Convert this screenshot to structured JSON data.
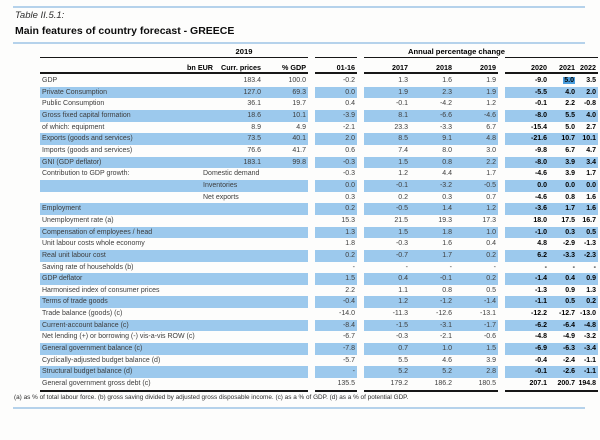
{
  "table_label": "Table II.5.1:",
  "title": "Main features of country forecast - GREECE",
  "header": {
    "group_2019": "2019",
    "group_apc": "Annual percentage change",
    "columns": [
      "bn EUR",
      "Curr. prices",
      "% GDP",
      "01-16",
      "2017",
      "2018",
      "2019",
      "2020",
      "2021",
      "2022"
    ]
  },
  "rows": [
    {
      "label": "GDP",
      "s": false,
      "hl": 7,
      "v": [
        "183.4",
        "100.0",
        "-0.2",
        "1.3",
        "1.6",
        "1.9",
        "-9.0",
        "5.0",
        "3.5"
      ]
    },
    {
      "label": "Private Consumption",
      "s": true,
      "v": [
        "127.0",
        "69.3",
        "0.0",
        "1.9",
        "2.3",
        "1.9",
        "-5.5",
        "4.0",
        "2.0"
      ]
    },
    {
      "label": "Public Consumption",
      "s": false,
      "v": [
        "36.1",
        "19.7",
        "0.4",
        "-0.1",
        "-4.2",
        "1.2",
        "-0.1",
        "2.2",
        "-0.8"
      ]
    },
    {
      "label": "Gross fixed capital formation",
      "s": true,
      "v": [
        "18.6",
        "10.1",
        "-3.9",
        "8.1",
        "-6.6",
        "-4.6",
        "-8.0",
        "5.5",
        "4.0"
      ]
    },
    {
      "label": "of which: equipment",
      "s": false,
      "v": [
        "8.9",
        "4.9",
        "-2.1",
        "23.3",
        "-3.3",
        "6.7",
        "-15.4",
        "5.0",
        "2.7"
      ]
    },
    {
      "label": "Exports (goods and services)",
      "s": true,
      "v": [
        "73.5",
        "40.1",
        "2.0",
        "8.5",
        "9.1",
        "4.8",
        "-21.6",
        "10.7",
        "10.1"
      ]
    },
    {
      "label": "Imports (goods and services)",
      "s": false,
      "v": [
        "76.6",
        "41.7",
        "0.6",
        "7.4",
        "8.0",
        "3.0",
        "-9.8",
        "6.7",
        "4.7"
      ]
    },
    {
      "label": "GNI (GDP deflator)",
      "s": true,
      "v": [
        "183.1",
        "99.8",
        "-0.3",
        "1.5",
        "0.8",
        "2.2",
        "-8.0",
        "3.9",
        "3.4"
      ]
    },
    {
      "label": "Contribution to GDP growth:",
      "sub": "Domestic demand",
      "s": false,
      "v": [
        "",
        "",
        "-0.3",
        "1.2",
        "4.4",
        "1.7",
        "-4.6",
        "3.9",
        "1.7"
      ]
    },
    {
      "label": "",
      "sub": "Inventories",
      "s": true,
      "v": [
        "",
        "",
        "0.0",
        "-0.1",
        "-3.2",
        "-0.5",
        "0.0",
        "0.0",
        "0.0"
      ]
    },
    {
      "label": "",
      "sub": "Net exports",
      "s": false,
      "v": [
        "",
        "",
        "0.3",
        "0.2",
        "0.3",
        "0.7",
        "-4.6",
        "0.8",
        "1.6"
      ]
    },
    {
      "label": "Employment",
      "s": true,
      "v": [
        "",
        "",
        "0.2",
        "-0.5",
        "1.4",
        "1.2",
        "-3.6",
        "1.7",
        "1.6"
      ]
    },
    {
      "label": "Unemployment rate (a)",
      "s": false,
      "v": [
        "",
        "",
        "15.3",
        "21.5",
        "19.3",
        "17.3",
        "18.0",
        "17.5",
        "16.7"
      ]
    },
    {
      "label": "Compensation of employees / head",
      "s": true,
      "v": [
        "",
        "",
        "1.3",
        "1.5",
        "1.8",
        "1.0",
        "-1.0",
        "0.3",
        "0.5"
      ]
    },
    {
      "label": "Unit labour costs whole economy",
      "s": false,
      "v": [
        "",
        "",
        "1.8",
        "-0.3",
        "1.6",
        "0.4",
        "4.8",
        "-2.9",
        "-1.3"
      ]
    },
    {
      "label": "Real unit labour cost",
      "s": true,
      "v": [
        "",
        "",
        "0.2",
        "-0.7",
        "1.7",
        "0.2",
        "6.2",
        "-3.3",
        "-2.3"
      ]
    },
    {
      "label": "Saving rate of households (b)",
      "s": false,
      "v": [
        "",
        "",
        "-",
        "-",
        "-",
        "-",
        "-",
        "-",
        "-"
      ]
    },
    {
      "label": "GDP deflator",
      "s": true,
      "v": [
        "",
        "",
        "1.5",
        "0.4",
        "-0.1",
        "0.2",
        "-1.4",
        "0.4",
        "0.9"
      ]
    },
    {
      "label": "Harmonised index of consumer prices",
      "s": false,
      "v": [
        "",
        "",
        "2.2",
        "1.1",
        "0.8",
        "0.5",
        "-1.3",
        "0.9",
        "1.3"
      ]
    },
    {
      "label": "Terms of trade goods",
      "s": true,
      "v": [
        "",
        "",
        "-0.4",
        "1.2",
        "-1.2",
        "-1.4",
        "-1.1",
        "0.5",
        "0.2"
      ]
    },
    {
      "label": "Trade balance (goods) (c)",
      "s": false,
      "v": [
        "",
        "",
        "-14.0",
        "-11.3",
        "-12.6",
        "-13.1",
        "-12.2",
        "-12.7",
        "-13.0"
      ]
    },
    {
      "label": "Current-account balance (c)",
      "s": true,
      "v": [
        "",
        "",
        "-8.4",
        "-1.5",
        "-3.1",
        "-1.7",
        "-6.2",
        "-6.4",
        "-4.8"
      ]
    },
    {
      "label": "Net lending (+) or borrowing (-) vis-a-vis ROW (c)",
      "s": false,
      "v": [
        "",
        "",
        "-6.7",
        "-0.3",
        "-2.1",
        "-0.6",
        "-4.8",
        "-4.9",
        "-3.2"
      ]
    },
    {
      "label": "General government balance (c)",
      "s": true,
      "v": [
        "",
        "",
        "-7.8",
        "0.7",
        "1.0",
        "1.5",
        "-6.9",
        "-6.3",
        "-3.4"
      ]
    },
    {
      "label": "Cyclically-adjusted budget balance (d)",
      "s": false,
      "v": [
        "",
        "",
        "-5.7",
        "5.5",
        "4.6",
        "3.9",
        "-0.4",
        "-2.4",
        "-1.1"
      ]
    },
    {
      "label": "Structural budget balance (d)",
      "s": true,
      "v": [
        "",
        "",
        "-",
        "5.2",
        "5.2",
        "2.8",
        "-0.1",
        "-2.6",
        "-1.1"
      ]
    },
    {
      "label": "General government gross debt (c)",
      "s": false,
      "v": [
        "",
        "",
        "135.5",
        "179.2",
        "186.2",
        "180.5",
        "207.1",
        "200.7",
        "194.8"
      ]
    }
  ],
  "footnote": "(a) as % of total labour force. (b) gross saving divided by adjusted gross disposable income. (c) as a % of GDP. (d) as a % of potential GDP.",
  "colors": {
    "stripe": "#9CC9ED",
    "rule_blue": "#B5D2EB",
    "line_black": "#171717",
    "highlight": "#4A9EDE"
  }
}
